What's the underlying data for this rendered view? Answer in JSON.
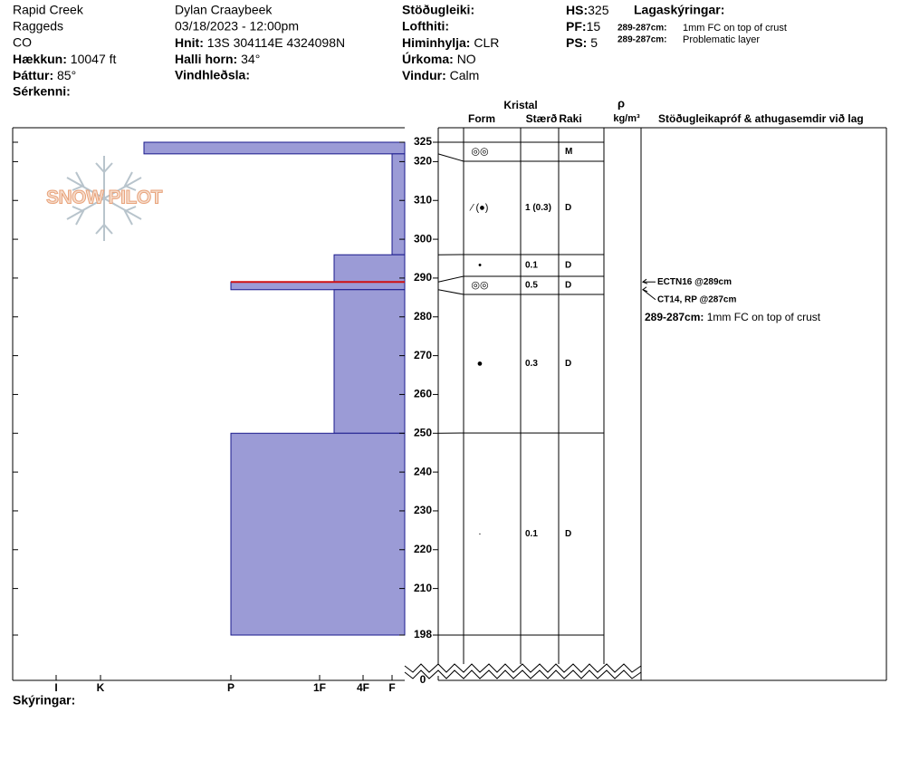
{
  "header": {
    "location": "Rapid Creek",
    "range": "Raggeds",
    "state": "CO",
    "elevation": {
      "label": "Hækkun:",
      "value": "10047 ft"
    },
    "aspect": {
      "label": "Þáttur:",
      "value": "85°"
    },
    "features": {
      "label": "Sérkenni:"
    },
    "observer": "Dylan Craaybeek",
    "datetime": "03/18/2023 - 12:00pm",
    "coords": {
      "label": "Hnit:",
      "value": "13S 304114E 4324098N"
    },
    "slope": {
      "label": "Halli horn:",
      "value": "34°"
    },
    "wind_loading": {
      "label": "Vindhleðsla:"
    },
    "stability": {
      "label": "Stöðugleiki:"
    },
    "air_temp": {
      "label": "Lofthiti:"
    },
    "sky": {
      "label": "Himinhylja:",
      "value": "CLR"
    },
    "precip": {
      "label": "Úrkoma:",
      "value": "NO"
    },
    "wind": {
      "label": "Vindur:",
      "value": "Calm"
    },
    "hs": {
      "label": "HS:",
      "value": 325
    },
    "pf": {
      "label": "PF:",
      "value": 15
    },
    "ps": {
      "label": "PS:",
      "value": 5
    },
    "layer_notes": {
      "label": "Lagaskýringar:",
      "items": [
        {
          "range": "289-287cm:",
          "text": "1mm FC on top of crust"
        },
        {
          "range": "289-287cm:",
          "text": "Problematic layer"
        }
      ]
    }
  },
  "logo": "SNOW PILOT",
  "profile": {
    "depth_lim": [
      198,
      325
    ],
    "depth_ticks": [
      325,
      320,
      310,
      300,
      290,
      280,
      270,
      260,
      250,
      240,
      230,
      220,
      210,
      198,
      0
    ],
    "hardness_ticks": [
      "I",
      "K",
      "P",
      "1F",
      "4F",
      "F"
    ],
    "critical_depth": 289,
    "layers": [
      {
        "top": 325,
        "bottom": 322,
        "hardness": "K-",
        "form": "◎◎",
        "size": "",
        "moisture": "M"
      },
      {
        "top": 322,
        "bottom": 296,
        "hardness": "F",
        "form": "⁄ (●)",
        "size": "1 (0.3)",
        "moisture": "D"
      },
      {
        "top": 296,
        "bottom": 289,
        "hardness": "1F-",
        "form": "•",
        "size": "0.1",
        "moisture": "D"
      },
      {
        "top": 289,
        "bottom": 287,
        "hardness": "P",
        "form": "◎◎",
        "size": "0.5",
        "moisture": "D"
      },
      {
        "top": 287,
        "bottom": 250,
        "hardness": "1F-",
        "form": "●",
        "size": "0.3",
        "moisture": "D"
      },
      {
        "top": 250,
        "bottom": 198,
        "hardness": "P",
        "form": "·",
        "size": "0.1",
        "moisture": "D"
      }
    ],
    "columns": {
      "crystal": "Kristal",
      "form": "Form",
      "size": "Stærð",
      "moisture": "Raki",
      "density": "ρ",
      "density_unit": "kg/m³",
      "tests": "Stöðugleikapróf & athugasemdir við lag"
    },
    "tests": [
      {
        "depth": 289,
        "label": "ECTN16 @289cm"
      },
      {
        "depth": 287,
        "label": "CT14, RP @287cm"
      }
    ],
    "comments": [
      {
        "range": "289-287cm:",
        "text": "1mm FC on top of crust"
      }
    ],
    "notes_label": "Skýringar:"
  }
}
